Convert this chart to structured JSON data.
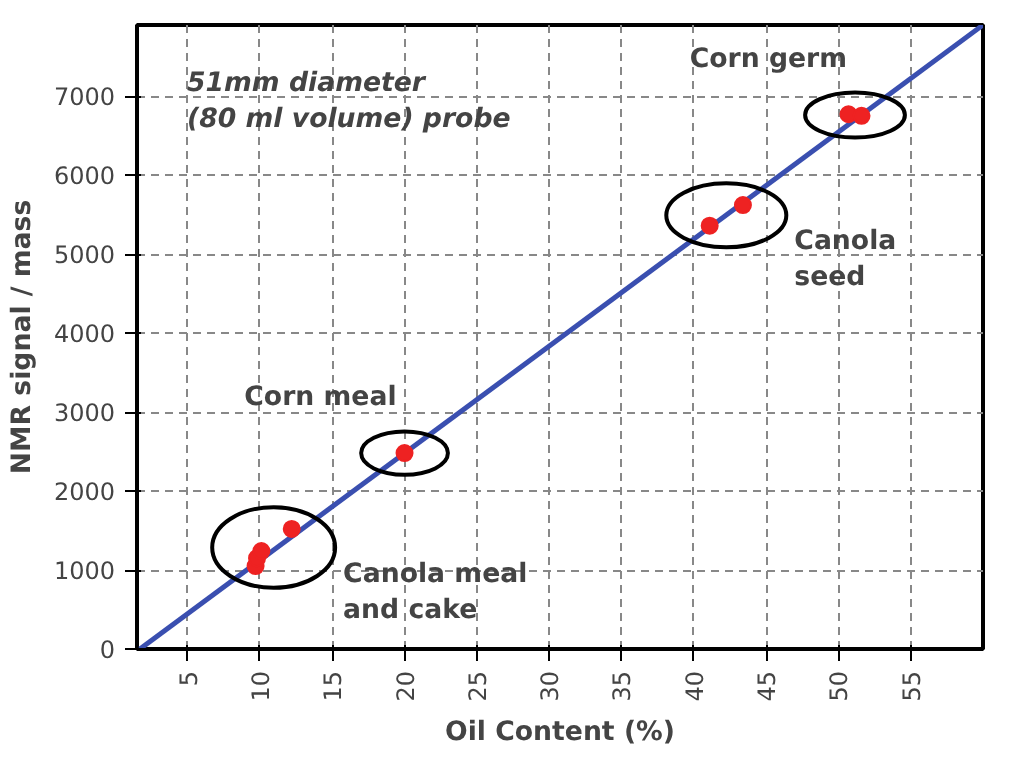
{
  "chart_data": {
    "type": "scatter",
    "xlabel": "Oil Content (%)",
    "ylabel": "NMR signal / mass",
    "xlim": [
      1.5,
      60
    ],
    "ylim": [
      0,
      7900
    ],
    "xticks": [
      5,
      10,
      15,
      20,
      25,
      30,
      35,
      40,
      45,
      50,
      55
    ],
    "yticks": [
      0,
      1000,
      2000,
      3000,
      4000,
      5000,
      6000,
      7000
    ],
    "grid": true,
    "marker": "circle",
    "series": [
      {
        "type": "line",
        "marker": "none",
        "color": "#3a4fb0",
        "x": [
          1.7,
          60
        ],
        "values": [
          0,
          7900
        ]
      },
      {
        "name": "Canola meal\nand cake",
        "color": "#ee2222",
        "x": [
          9.7,
          9.8,
          10.1,
          12.2
        ],
        "values": [
          1050,
          1150,
          1240,
          1520
        ]
      },
      {
        "name": "Corn meal",
        "color": "#ee2222",
        "x": [
          20
        ],
        "values": [
          2480
        ]
      },
      {
        "name": "Canola\nseed",
        "color": "#ee2222",
        "x": [
          41.1,
          43.4
        ],
        "values": [
          5360,
          5620
        ]
      },
      {
        "name": "Corn germ",
        "color": "#ee2222",
        "x": [
          50.7,
          51.6
        ],
        "values": [
          6770,
          6750
        ]
      }
    ],
    "annotations": [
      "51mm diameter\n(80 ml volume) probe"
    ]
  }
}
